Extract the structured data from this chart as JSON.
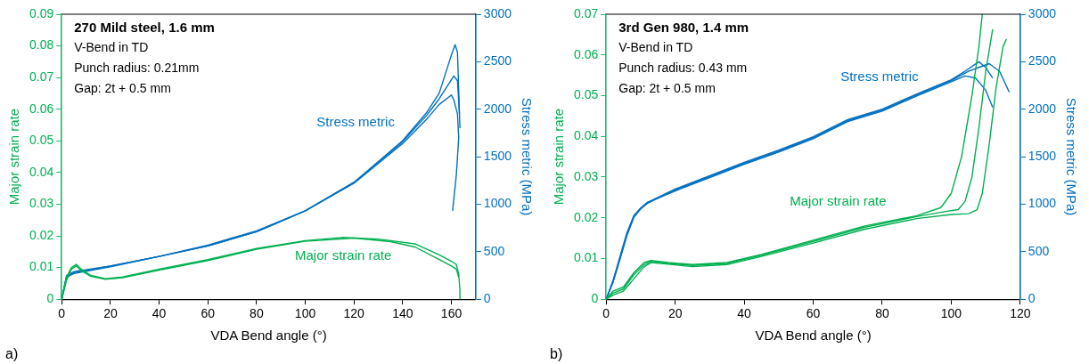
{
  "chart_data": [
    {
      "type": "line",
      "title": "270 Mild steel, 1.6 mm",
      "xlabel": "VDA Bend angle (°)",
      "ylabel": "Major strain rate",
      "y2label": "Stress metric (MPa)",
      "xlim": [
        0,
        170
      ],
      "xticks": [
        0,
        20,
        40,
        60,
        80,
        100,
        120,
        140,
        160
      ],
      "ylim": [
        0,
        0.09
      ],
      "yticks": [
        0,
        0.01,
        0.02,
        0.03,
        0.04,
        0.05,
        0.06,
        0.07,
        0.08,
        0.09
      ],
      "y2lim": [
        0,
        3000
      ],
      "y2ticks": [
        0,
        500,
        1000,
        1500,
        2000,
        2500,
        3000
      ],
      "grid": false,
      "legend": false,
      "marker": "none",
      "line_style": "solid",
      "series": [
        {
          "color": "#00b050",
          "x": [
            0,
            2,
            4,
            6,
            8,
            12,
            18,
            25,
            40,
            60,
            80,
            100,
            115,
            130,
            145,
            155,
            160,
            162,
            163,
            163.5,
            163.5
          ],
          "values": [
            0,
            0.007,
            0.01,
            0.011,
            0.0095,
            0.0075,
            0.0065,
            0.007,
            0.0095,
            0.0125,
            0.016,
            0.0185,
            0.0195,
            0.019,
            0.0175,
            0.014,
            0.012,
            0.011,
            0.008,
            0.003,
            0
          ]
        },
        {
          "color": "#00b050",
          "x": [
            0,
            2,
            4,
            6,
            8,
            12,
            18,
            25,
            40,
            60,
            80,
            100,
            120,
            135,
            145,
            155,
            160,
            162,
            163
          ],
          "values": [
            0,
            0.006,
            0.0095,
            0.0105,
            0.009,
            0.0072,
            0.0063,
            0.0068,
            0.0092,
            0.0122,
            0.0158,
            0.0183,
            0.0193,
            0.0182,
            0.0165,
            0.0125,
            0.0105,
            0.0095,
            0.007
          ]
        },
        {
          "color": "#0070c0",
          "axis": "y2",
          "x": [
            0,
            2,
            5,
            20,
            40,
            60,
            80,
            100,
            120,
            140,
            150,
            155,
            160,
            161.5,
            162.5,
            163,
            163.5
          ],
          "values": [
            0,
            250,
            290,
            350,
            450,
            570,
            720,
            930,
            1230,
            1670,
            1970,
            2170,
            2570,
            2680,
            2600,
            2200,
            1800
          ]
        },
        {
          "color": "#0070c0",
          "axis": "y2",
          "x": [
            0,
            2,
            5,
            20,
            40,
            60,
            80,
            100,
            120,
            140,
            150,
            155,
            160,
            161,
            162.5,
            163,
            162,
            160.5
          ],
          "values": [
            0,
            230,
            270,
            340,
            450,
            560,
            710,
            930,
            1220,
            1640,
            1900,
            2050,
            2150,
            2100,
            1950,
            1700,
            1300,
            930
          ]
        },
        {
          "color": "#0070c0",
          "axis": "y2",
          "x": [
            0,
            2,
            5,
            20,
            40,
            60,
            80,
            100,
            120,
            140,
            150,
            155,
            161,
            162.5,
            163.3
          ],
          "values": [
            0,
            240,
            280,
            350,
            450,
            560,
            710,
            930,
            1230,
            1660,
            1940,
            2110,
            2350,
            2300,
            1950
          ]
        }
      ],
      "annotations": [
        "a)",
        "V-Bend in TD",
        "Punch radius: 0.21mm",
        "Gap: 2t + 0.5 mm",
        "Stress metric",
        "Major strain rate"
      ]
    },
    {
      "type": "line",
      "title": "3rd Gen 980, 1.4 mm",
      "xlabel": "VDA Bend angle (°)",
      "ylabel": "Major strain rate",
      "y2label": "Stress metric (MPa)",
      "xlim": [
        0,
        120
      ],
      "xticks": [
        0,
        20,
        40,
        60,
        80,
        100,
        120
      ],
      "ylim": [
        0,
        0.07
      ],
      "yticks": [
        0,
        0.01,
        0.02,
        0.03,
        0.04,
        0.05,
        0.06,
        0.07
      ],
      "y2lim": [
        0,
        3000
      ],
      "y2ticks": [
        0,
        500,
        1000,
        1500,
        2000,
        2500,
        3000
      ],
      "grid": false,
      "legend": false,
      "marker": "none",
      "line_style": "solid",
      "series": [
        {
          "color": "#00b050",
          "x": [
            0,
            2,
            5,
            8,
            11,
            13,
            18,
            25,
            35,
            45,
            60,
            75,
            90,
            97,
            100,
            103,
            106,
            108,
            109
          ],
          "values": [
            0,
            0.002,
            0.003,
            0.0065,
            0.009,
            0.0095,
            0.009,
            0.0085,
            0.009,
            0.011,
            0.0145,
            0.018,
            0.0205,
            0.0225,
            0.026,
            0.035,
            0.05,
            0.062,
            0.07
          ]
        },
        {
          "color": "#00b050",
          "x": [
            0,
            2,
            5,
            8,
            11,
            13,
            18,
            25,
            35,
            45,
            60,
            75,
            90,
            98,
            102,
            104,
            106,
            108,
            110,
            112
          ],
          "values": [
            0,
            0.0015,
            0.0025,
            0.006,
            0.0085,
            0.0093,
            0.0088,
            0.0083,
            0.0088,
            0.0108,
            0.0142,
            0.0177,
            0.0203,
            0.0215,
            0.022,
            0.024,
            0.03,
            0.042,
            0.056,
            0.0663
          ]
        },
        {
          "color": "#00b050",
          "x": [
            0,
            2,
            5,
            8,
            11,
            13,
            18,
            25,
            35,
            45,
            60,
            75,
            90,
            100,
            105,
            107.5,
            109,
            111,
            113,
            115,
            116
          ],
          "values": [
            0,
            0.001,
            0.002,
            0.005,
            0.008,
            0.009,
            0.0086,
            0.008,
            0.0085,
            0.0105,
            0.0138,
            0.0172,
            0.0198,
            0.0208,
            0.021,
            0.022,
            0.026,
            0.038,
            0.052,
            0.062,
            0.0639
          ]
        },
        {
          "color": "#0070c0",
          "axis": "y2",
          "x": [
            0,
            2,
            4,
            6,
            8,
            10,
            12,
            20,
            30,
            40,
            50,
            60,
            70,
            80,
            90,
            100,
            104,
            108,
            110,
            112
          ],
          "values": [
            0,
            200,
            450,
            700,
            880,
            960,
            1020,
            1160,
            1300,
            1440,
            1570,
            1710,
            1890,
            2000,
            2160,
            2310,
            2400,
            2500,
            2440,
            2330
          ]
        },
        {
          "color": "#0070c0",
          "axis": "y2",
          "x": [
            0,
            2,
            4,
            6,
            8,
            10,
            12,
            20,
            30,
            40,
            50,
            60,
            70,
            80,
            90,
            100,
            105,
            108,
            111,
            114,
            116.8
          ],
          "values": [
            0,
            180,
            420,
            670,
            860,
            950,
            1010,
            1150,
            1290,
            1430,
            1560,
            1700,
            1880,
            1990,
            2150,
            2300,
            2400,
            2440,
            2480,
            2400,
            2180
          ]
        },
        {
          "color": "#0070c0",
          "axis": "y2",
          "x": [
            0,
            2,
            4,
            6,
            8,
            10,
            12,
            20,
            30,
            40,
            50,
            60,
            70,
            80,
            90,
            100,
            104,
            107,
            110,
            112
          ],
          "values": [
            0,
            190,
            430,
            680,
            870,
            960,
            1020,
            1140,
            1280,
            1420,
            1550,
            1690,
            1870,
            1980,
            2140,
            2290,
            2350,
            2330,
            2200,
            2020
          ]
        }
      ],
      "annotations": [
        "b)",
        "V-Bend in TD",
        "Punch radius: 0.43 mm",
        "Gap: 2t + 0.5 mm",
        "Stress metric",
        "Major strain rate"
      ]
    }
  ]
}
